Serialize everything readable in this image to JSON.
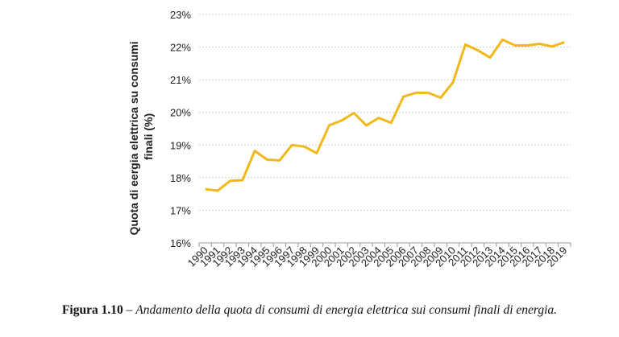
{
  "caption": {
    "label": "Figura 1.10",
    "separator": " – ",
    "text": "Andamento della quota di consumi di energia elettrica sui consumi finali di energia."
  },
  "chart_data": {
    "type": "line",
    "title": "",
    "xlabel": "",
    "ylabel_lines": [
      "Quota di eergia elettrica su consumi",
      "finali (%)"
    ],
    "ylim": [
      16,
      23
    ],
    "yticks": [
      "16%",
      "17%",
      "18%",
      "19%",
      "20%",
      "21%",
      "22%",
      "23%"
    ],
    "grid": "horizontal dashed",
    "line_color": "#f2b817",
    "x": [
      "1990",
      "1991",
      "1992",
      "1993",
      "1994",
      "1995",
      "1996",
      "1997",
      "1998",
      "1999",
      "2000",
      "2001",
      "2002",
      "2003",
      "2004",
      "2005",
      "2006",
      "2007",
      "2008",
      "2009",
      "2010",
      "2011",
      "2012",
      "2013",
      "2014",
      "2015",
      "2016",
      "2017",
      "2018",
      "2019"
    ],
    "values": [
      17.65,
      17.6,
      17.9,
      17.92,
      18.82,
      18.55,
      18.53,
      19.0,
      18.95,
      18.75,
      19.6,
      19.75,
      19.98,
      19.6,
      19.83,
      19.68,
      20.48,
      20.6,
      20.6,
      20.45,
      20.92,
      22.08,
      21.9,
      21.68,
      22.23,
      22.05,
      22.05,
      22.1,
      22.02,
      22.15
    ]
  }
}
